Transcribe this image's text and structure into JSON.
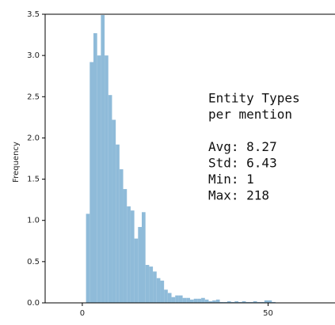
{
  "chart_data": {
    "type": "histogram",
    "ylabel": "Frequency",
    "annotation": [
      "Entity Types",
      "per mention",
      "",
      "Avg: 8.27",
      "Std: 6.43",
      "Min: 1",
      "Max: 218"
    ],
    "bins": [
      1,
      2,
      3,
      4,
      5,
      6,
      7,
      8,
      9,
      10,
      11,
      12,
      13,
      14,
      15,
      16,
      17,
      18,
      19,
      20,
      21,
      22,
      23,
      24,
      25,
      26,
      27,
      28,
      29,
      30,
      31,
      32,
      33,
      34,
      35,
      36,
      37,
      38,
      39,
      40,
      41,
      42,
      43,
      44,
      45,
      46,
      47,
      48,
      49,
      50,
      51,
      52
    ],
    "values": [
      1.08,
      2.92,
      3.27,
      3.0,
      3.49,
      3.0,
      2.52,
      2.22,
      1.92,
      1.62,
      1.38,
      1.17,
      1.12,
      0.78,
      0.92,
      1.1,
      0.46,
      0.44,
      0.38,
      0.3,
      0.27,
      0.16,
      0.12,
      0.07,
      0.09,
      0.09,
      0.06,
      0.06,
      0.04,
      0.05,
      0.05,
      0.06,
      0.04,
      0.02,
      0.03,
      0.04,
      0.01,
      0.01,
      0.02,
      0.01,
      0.02,
      0.01,
      0.02,
      0.01,
      0.01,
      0.02,
      0.01,
      0.01,
      0.03,
      0.03,
      0.01
    ],
    "color": "#8fbbd9",
    "xlim": [
      -10,
      68
    ],
    "xticks": [
      0,
      50
    ],
    "ylim": [
      0,
      3.5
    ],
    "yticks": [
      {
        "value": 0,
        "label": "0.0"
      },
      {
        "value": 0.5,
        "label": "0.5"
      },
      {
        "value": 1,
        "label": "1.0"
      },
      {
        "value": 1.5,
        "label": "1.5"
      },
      {
        "value": 2,
        "label": "2.0"
      },
      {
        "value": 2.5,
        "label": "2.5"
      },
      {
        "value": 3,
        "label": "3.0"
      },
      {
        "value": 3.5,
        "label": "3.5"
      }
    ]
  }
}
